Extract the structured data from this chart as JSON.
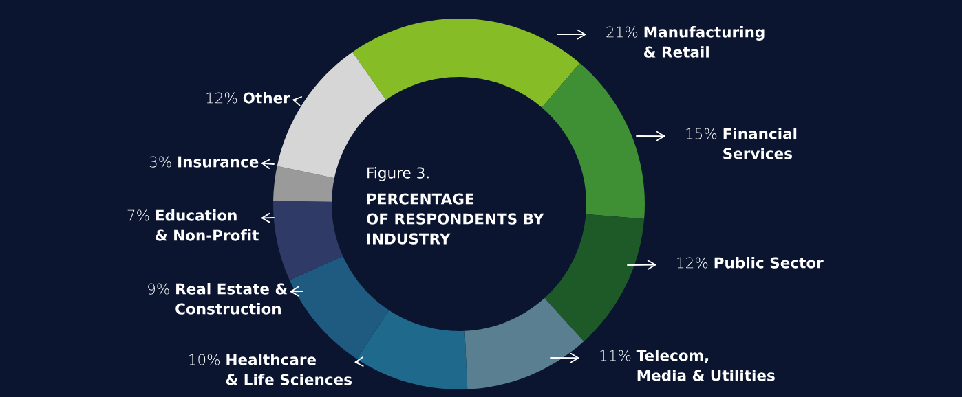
{
  "chart_data": {
    "type": "donut",
    "title": "Figure 3.",
    "subtitle": "PERCENTAGE\nOF RESPONDENTS BY\nINDUSTRY",
    "categories": [
      "Manufacturing\n& Retail",
      "Financial\nServices",
      "Public Sector",
      "Telecom,\nMedia & Utilities",
      "Healthcare\n& Life Sciences",
      "Real Estate &\nConstruction",
      "Education\n& Non-Profit",
      "Insurance",
      "Other"
    ],
    "values": [
      21,
      15,
      12,
      11,
      10,
      9,
      7,
      3,
      12
    ],
    "value_labels": [
      "21%",
      "15%",
      "12%",
      "11%",
      "10%",
      "9%",
      "7%",
      "3%",
      "12%"
    ],
    "colors": [
      "#86bc25",
      "#3f8f35",
      "#1d5a28",
      "#5a7f90",
      "#1f6a8c",
      "#1f5a80",
      "#2f3a66",
      "#9a9a9a",
      "#d6d6d6"
    ]
  }
}
